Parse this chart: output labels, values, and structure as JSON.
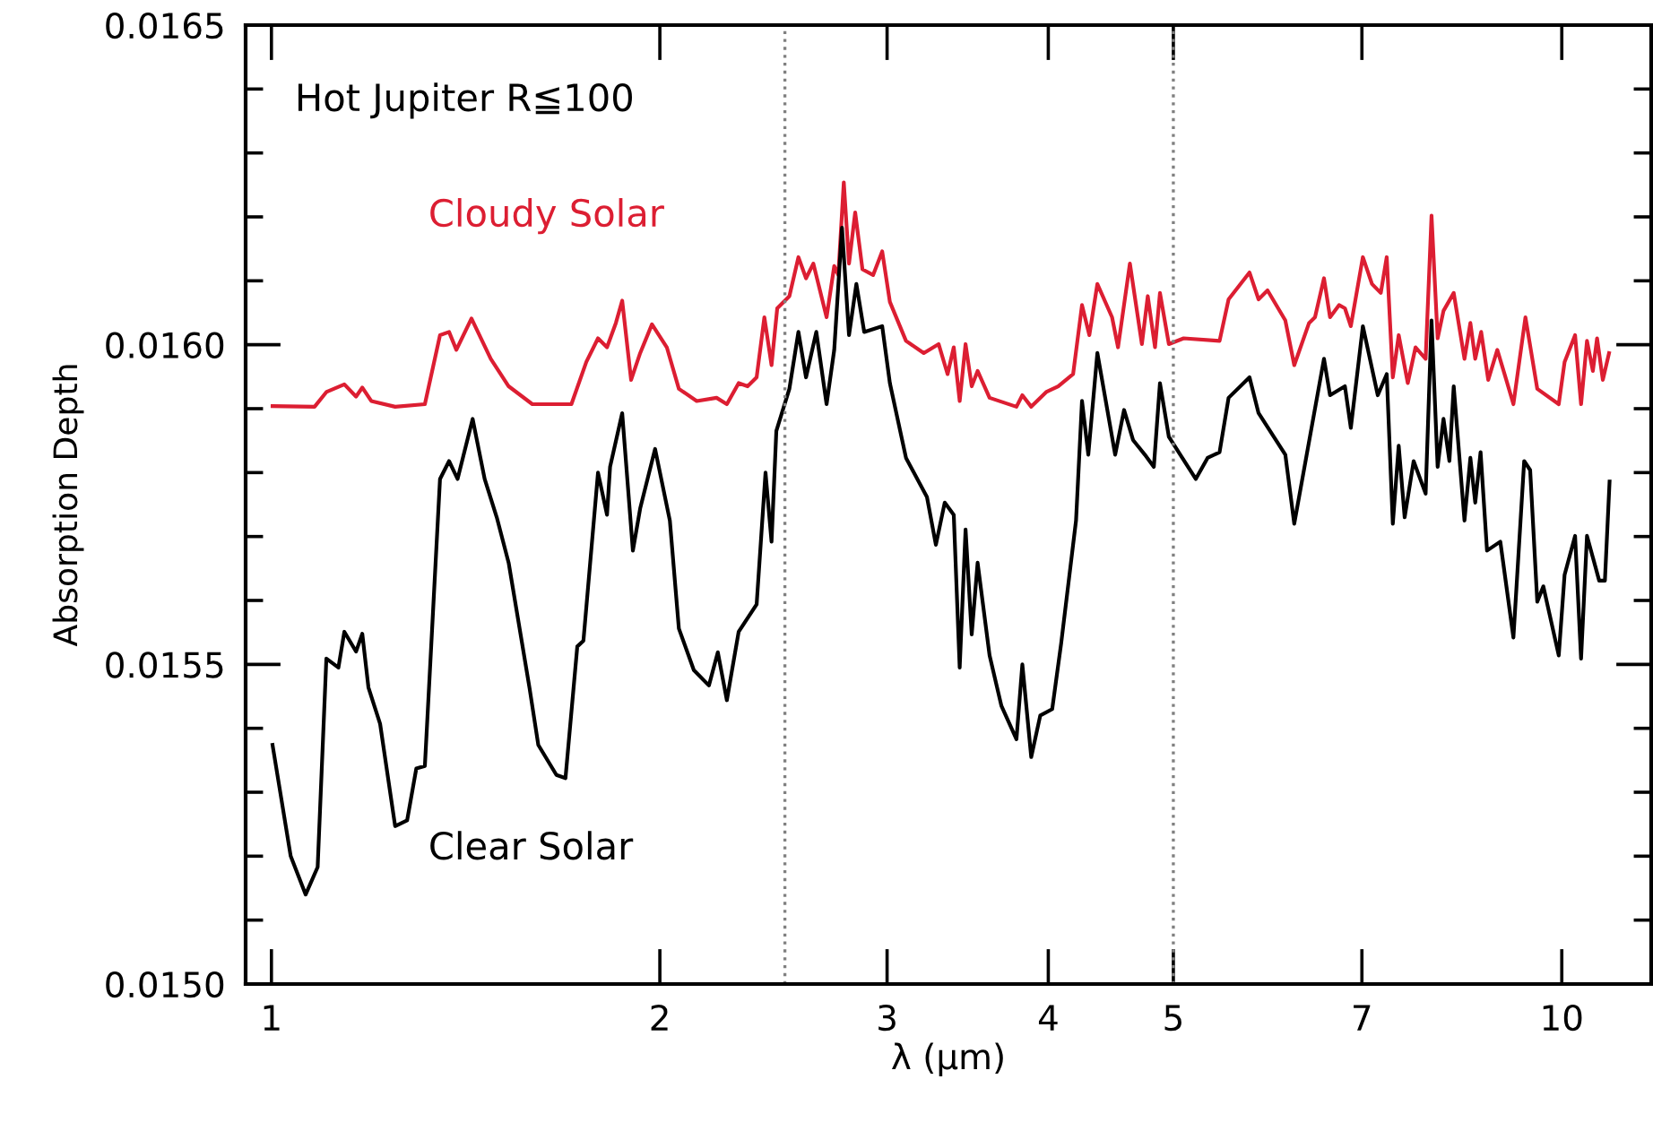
{
  "chart_data": {
    "type": "line",
    "xlabel": "λ (μm)",
    "ylabel": "Absorption Depth",
    "log": "x",
    "annotations": [
      "Hot Jupiter R≦100"
    ],
    "xlim": [
      0.955,
      11.73
    ],
    "xticks": [
      1,
      2,
      3,
      4,
      5,
      7,
      10
    ],
    "ylim": [
      0.015,
      0.0165
    ],
    "yticks": [
      {
        "value": 0.015,
        "label": "0.0150"
      },
      {
        "value": 0.0155,
        "label": "0.0155"
      },
      {
        "value": 0.016,
        "label": "0.0160"
      },
      {
        "value": 0.0165,
        "label": "0.0165"
      }
    ],
    "grid": false,
    "legend": false,
    "marker": "none",
    "line_style": "solid",
    "ref_lines": [
      {
        "axis": "x",
        "value": 2.5,
        "color": "#808080",
        "line_style": "dotted"
      },
      {
        "axis": "x",
        "value": 5,
        "color": "#808080",
        "line_style": "dotted"
      }
    ],
    "series": [
      {
        "name": "Cloudy Solar",
        "color": "#dc1e32",
        "x": [
          1.002,
          1.08,
          1.103,
          1.139,
          1.163,
          1.176,
          1.195,
          1.247,
          1.315,
          1.351,
          1.373,
          1.391,
          1.429,
          1.479,
          1.527,
          1.593,
          1.708,
          1.754,
          1.791,
          1.82,
          1.849,
          1.87,
          1.9,
          1.931,
          1.972,
          2.025,
          2.069,
          2.136,
          2.213,
          2.254,
          2.302,
          2.339,
          2.377,
          2.41,
          2.441,
          2.466,
          2.52,
          2.561,
          2.596,
          2.63,
          2.693,
          2.73,
          2.75,
          2.777,
          2.803,
          2.834,
          2.871,
          2.926,
          2.974,
          3.015,
          3.103,
          3.203,
          3.289,
          3.342,
          3.379,
          3.415,
          3.451,
          3.489,
          3.526,
          3.602,
          3.779,
          3.819,
          3.88,
          3.985,
          4.071,
          4.181,
          4.248,
          4.304,
          4.366,
          4.482,
          4.53,
          4.627,
          4.727,
          4.777,
          4.839,
          4.882,
          4.96,
          5.093,
          5.43,
          5.518,
          5.728,
          5.821,
          5.915,
          6.106,
          6.204,
          6.37,
          6.438,
          6.542,
          6.613,
          6.72,
          6.791,
          6.863,
          7.012,
          7.127,
          7.24,
          7.317,
          7.397,
          7.475,
          7.597,
          7.703,
          7.843,
          7.926,
          8.013,
          8.097,
          8.246,
          8.406,
          8.495,
          8.569,
          8.66,
          8.77,
          8.913,
          9.057,
          9.173,
          9.372,
          9.572,
          9.946,
          10.05,
          10.24,
          10.35,
          10.46,
          10.57,
          10.65,
          10.76,
          10.88
        ],
        "values": [
          0.015904,
          0.015903,
          0.015926,
          0.015938,
          0.015919,
          0.015933,
          0.015912,
          0.015903,
          0.015907,
          0.016015,
          0.01602,
          0.015992,
          0.016041,
          0.015978,
          0.015935,
          0.015907,
          0.015907,
          0.015973,
          0.01601,
          0.015996,
          0.016034,
          0.016069,
          0.015945,
          0.015987,
          0.016032,
          0.015996,
          0.015931,
          0.015912,
          0.015917,
          0.015907,
          0.01594,
          0.015935,
          0.015949,
          0.016043,
          0.015968,
          0.016057,
          0.016076,
          0.016137,
          0.016104,
          0.016127,
          0.016043,
          0.016123,
          0.016109,
          0.016254,
          0.016127,
          0.016207,
          0.016118,
          0.016109,
          0.016146,
          0.016067,
          0.016006,
          0.015987,
          0.016001,
          0.015954,
          0.015996,
          0.015912,
          0.016001,
          0.015935,
          0.015959,
          0.015917,
          0.015903,
          0.015921,
          0.015903,
          0.015926,
          0.015935,
          0.015954,
          0.016062,
          0.016015,
          0.016095,
          0.016043,
          0.015996,
          0.016127,
          0.016001,
          0.016076,
          0.015996,
          0.016081,
          0.016001,
          0.01601,
          0.016006,
          0.016071,
          0.016113,
          0.016071,
          0.016085,
          0.016038,
          0.015968,
          0.016034,
          0.016043,
          0.016104,
          0.016043,
          0.016062,
          0.016057,
          0.016029,
          0.016137,
          0.016095,
          0.016081,
          0.016137,
          0.015949,
          0.016015,
          0.01594,
          0.015996,
          0.015978,
          0.016202,
          0.01601,
          0.016053,
          0.016081,
          0.015978,
          0.016034,
          0.015978,
          0.01602,
          0.015945,
          0.015992,
          0.015945,
          0.015907,
          0.016043,
          0.015931,
          0.015907,
          0.015973,
          0.016015,
          0.015907,
          0.016006,
          0.015959,
          0.01601,
          0.015945,
          0.015987
        ]
      },
      {
        "name": "Clear Solar",
        "color": "#000000",
        "x": [
          1.002,
          1.035,
          1.063,
          1.086,
          1.103,
          1.127,
          1.139,
          1.163,
          1.176,
          1.189,
          1.214,
          1.247,
          1.274,
          1.295,
          1.315,
          1.351,
          1.373,
          1.394,
          1.432,
          1.463,
          1.495,
          1.527,
          1.585,
          1.61,
          1.663,
          1.69,
          1.726,
          1.745,
          1.791,
          1.82,
          1.83,
          1.87,
          1.906,
          1.931,
          1.983,
          2.036,
          2.069,
          2.125,
          2.183,
          2.218,
          2.254,
          2.302,
          2.377,
          2.415,
          2.441,
          2.462,
          2.52,
          2.561,
          2.596,
          2.644,
          2.693,
          2.73,
          2.768,
          2.803,
          2.84,
          2.88,
          2.974,
          3.015,
          3.103,
          3.221,
          3.273,
          3.325,
          3.379,
          3.415,
          3.451,
          3.489,
          3.526,
          3.602,
          3.679,
          3.779,
          3.819,
          3.88,
          3.943,
          4.028,
          4.093,
          4.203,
          4.248,
          4.296,
          4.366,
          4.507,
          4.579,
          4.653,
          4.752,
          4.829,
          4.882,
          4.96,
          5.204,
          5.315,
          5.43,
          5.518,
          5.728,
          5.821,
          6.106,
          6.204,
          6.542,
          6.613,
          6.791,
          6.863,
          7.012,
          7.201,
          7.317,
          7.397,
          7.475,
          7.555,
          7.677,
          7.843,
          7.926,
          8.013,
          8.097,
          8.183,
          8.246,
          8.406,
          8.495,
          8.569,
          8.651,
          8.751,
          8.961,
          9.173,
          9.351,
          9.451,
          9.572,
          9.676,
          9.946,
          10.05,
          10.24,
          10.35,
          10.46,
          10.69,
          10.8,
          10.89
        ],
        "values": [
          0.015374,
          0.0152,
          0.01514,
          0.015183,
          0.015509,
          0.015495,
          0.015551,
          0.01552,
          0.015548,
          0.015464,
          0.015407,
          0.015247,
          0.015256,
          0.015337,
          0.015341,
          0.01579,
          0.015818,
          0.01579,
          0.015884,
          0.01579,
          0.01573,
          0.015659,
          0.015463,
          0.015374,
          0.015327,
          0.015322,
          0.015528,
          0.015537,
          0.0158,
          0.015734,
          0.015809,
          0.015893,
          0.015678,
          0.015744,
          0.015837,
          0.015725,
          0.015556,
          0.015491,
          0.015467,
          0.015519,
          0.015444,
          0.015551,
          0.015594,
          0.0158,
          0.015692,
          0.015865,
          0.015931,
          0.01602,
          0.015949,
          0.01602,
          0.015907,
          0.015992,
          0.016183,
          0.016015,
          0.016095,
          0.01602,
          0.016029,
          0.01594,
          0.015823,
          0.015762,
          0.015687,
          0.015753,
          0.015734,
          0.015495,
          0.015711,
          0.015547,
          0.015659,
          0.015514,
          0.015435,
          0.015383,
          0.0155,
          0.015355,
          0.01542,
          0.01543,
          0.015533,
          0.015725,
          0.015912,
          0.015828,
          0.015987,
          0.015828,
          0.015898,
          0.015851,
          0.015828,
          0.015809,
          0.01594,
          0.015856,
          0.01579,
          0.015823,
          0.015832,
          0.015917,
          0.015949,
          0.015893,
          0.015828,
          0.01572,
          0.015978,
          0.015921,
          0.015935,
          0.01587,
          0.016029,
          0.015921,
          0.015954,
          0.01572,
          0.015842,
          0.01573,
          0.015818,
          0.015767,
          0.016038,
          0.015809,
          0.015884,
          0.015818,
          0.015935,
          0.015725,
          0.015823,
          0.015753,
          0.015832,
          0.015678,
          0.015692,
          0.015542,
          0.015818,
          0.015804,
          0.015598,
          0.015622,
          0.015514,
          0.01564,
          0.015701,
          0.015509,
          0.015701,
          0.015631,
          0.015631,
          0.015786
        ]
      }
    ]
  }
}
